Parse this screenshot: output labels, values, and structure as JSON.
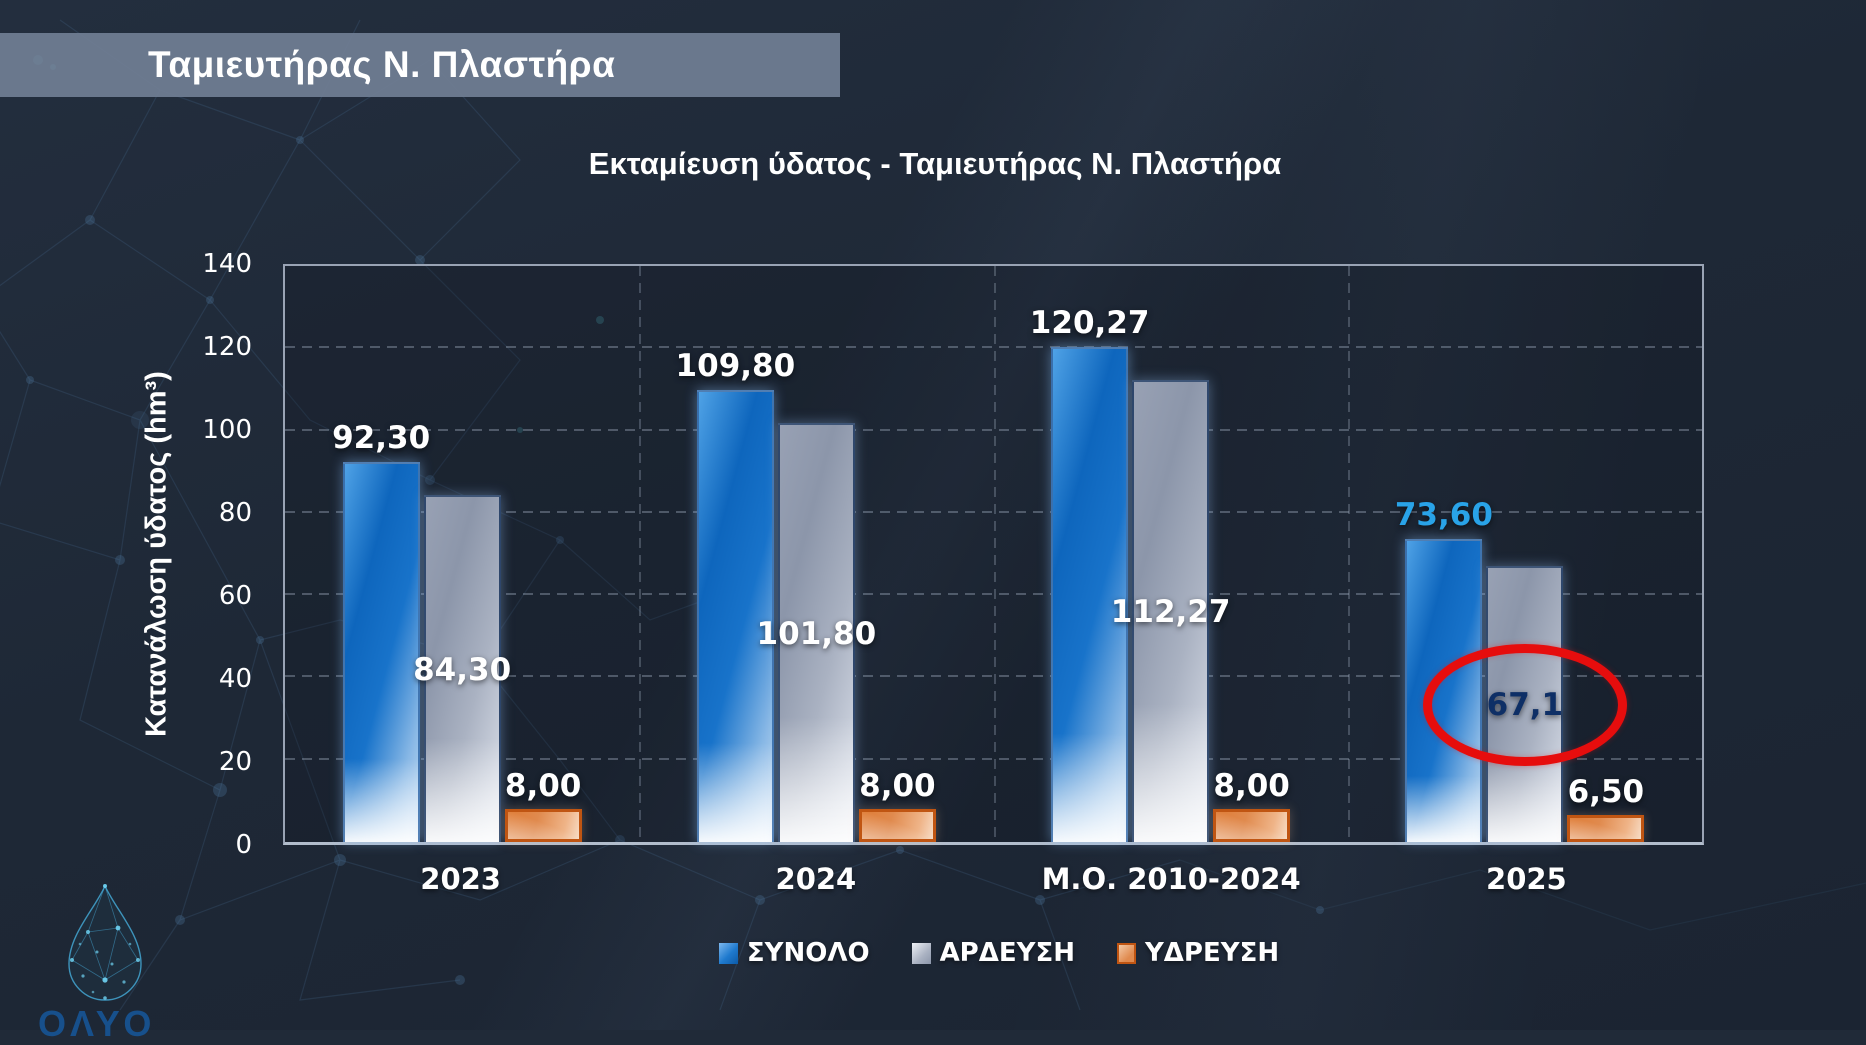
{
  "banner": {
    "title": "Ταμιευτήρας Ν. Πλαστήρα"
  },
  "chart": {
    "title": "Εκταμίευση ύδατος - Ταμιευτήρας Ν. Πλαστήρα"
  },
  "logo": {
    "partial_text": "ΟΛΥΟ"
  },
  "chart_data": {
    "type": "bar",
    "title": "Εκταμίευση ύδατος - Ταμιευτήρας Ν. Πλαστήρα",
    "xlabel": "",
    "ylabel": "Κατανάλωση ύδατος (hm³)",
    "ylim": [
      0,
      140
    ],
    "ytick_step": 20,
    "yticks": [
      0,
      20,
      40,
      60,
      80,
      100,
      120,
      140
    ],
    "grid": true,
    "legend_position": "bottom",
    "categories": [
      "2023",
      "2024",
      "Μ.Ο. 2010-2024",
      "2025"
    ],
    "series": [
      {
        "name": "ΣΥΝΟΛΟ",
        "color": "#1373cc",
        "values": [
          92.3,
          109.8,
          120.27,
          73.6
        ],
        "value_labels": [
          "92,30",
          "109,80",
          "120,27",
          "73,60"
        ],
        "label_placement": "above",
        "label_colors": [
          "#ffffff",
          "#ffffff",
          "#ffffff",
          "#29a3e8"
        ]
      },
      {
        "name": "ΑΡΔΕΥΣΗ",
        "color": "#aab2c2",
        "values": [
          84.3,
          101.8,
          112.27,
          67.1
        ],
        "value_labels": [
          "84,30",
          "101,80",
          "112,27",
          "67,1"
        ],
        "label_placement": "inside",
        "label_colors": [
          "#ffffff",
          "#ffffff",
          "#ffffff",
          "#0e2f66"
        ]
      },
      {
        "name": "ΥΔΡΕΥΣΗ",
        "color": "#e0813c",
        "values": [
          8.0,
          8.0,
          8.0,
          6.5
        ],
        "value_labels": [
          "8,00",
          "8,00",
          "8,00",
          "6,50"
        ],
        "label_placement": "above",
        "label_colors": [
          "#ffffff",
          "#ffffff",
          "#ffffff",
          "#ffffff"
        ]
      }
    ],
    "highlight_annotation": {
      "shape": "red-ellipse",
      "series_index": 1,
      "category_index": 3,
      "color": "#e60d0d"
    }
  }
}
